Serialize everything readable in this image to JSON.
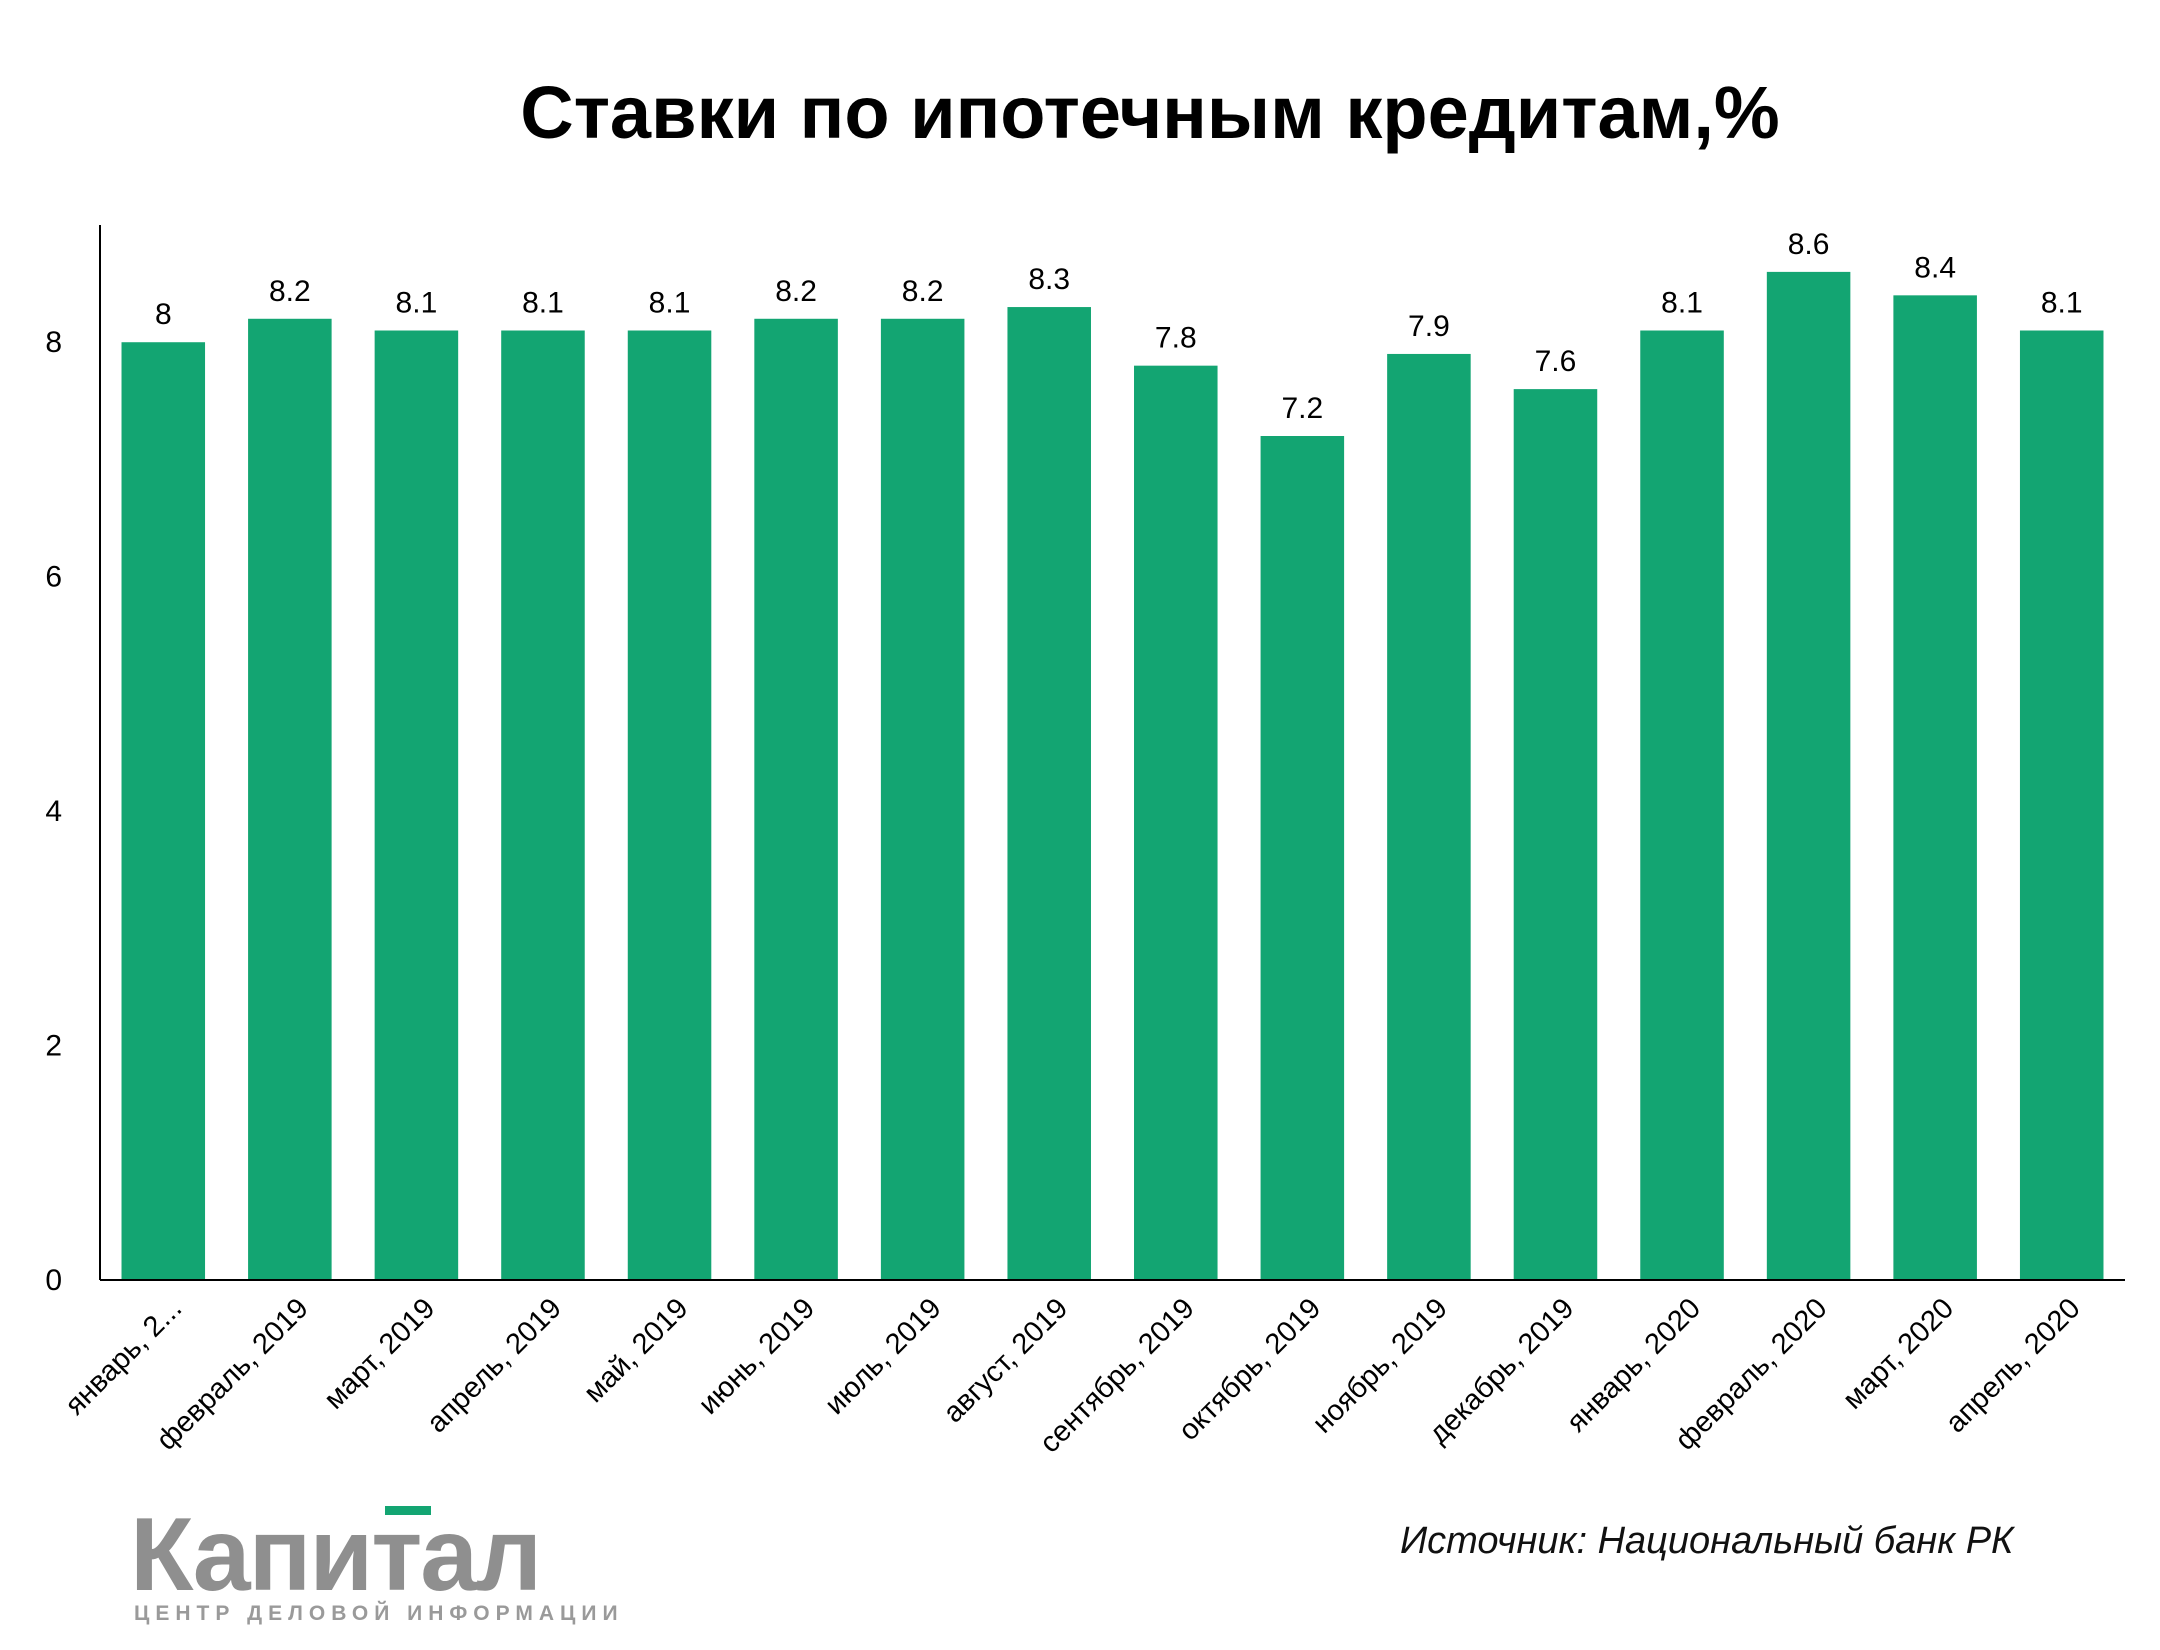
{
  "title": "Ставки по ипотечным кредитам,%",
  "source": "Источник: Национальный банк РК",
  "logo": {
    "word": "Капитал",
    "subtitle": "ЦЕНТР ДЕЛОВОЙ ИНФОРМАЦИИ"
  },
  "colors": {
    "bar": "#13a572",
    "accent": "#13a572",
    "text": "#000000",
    "logo": "#8f8f8f"
  },
  "chart_data": {
    "type": "bar",
    "title": "Ставки по ипотечным кредитам,%",
    "xlabel": "",
    "ylabel": "",
    "ylim": [
      0,
      9
    ],
    "yticks": [
      0,
      2,
      4,
      6,
      8
    ],
    "grid": false,
    "show_data_labels": true,
    "categories": [
      "январь, 2...",
      "февраль, 2019",
      "март, 2019",
      "апрель, 2019",
      "май, 2019",
      "июнь, 2019",
      "июль, 2019",
      "август, 2019",
      "сентябрь, 2019",
      "октябрь, 2019",
      "ноябрь, 2019",
      "декабрь, 2019",
      "январь, 2020",
      "февраль, 2020",
      "март, 2020",
      "апрель, 2020"
    ],
    "values": [
      8,
      8.2,
      8.1,
      8.1,
      8.1,
      8.2,
      8.2,
      8.3,
      7.8,
      7.2,
      7.9,
      7.6,
      8.1,
      8.6,
      8.4,
      8.1
    ]
  }
}
